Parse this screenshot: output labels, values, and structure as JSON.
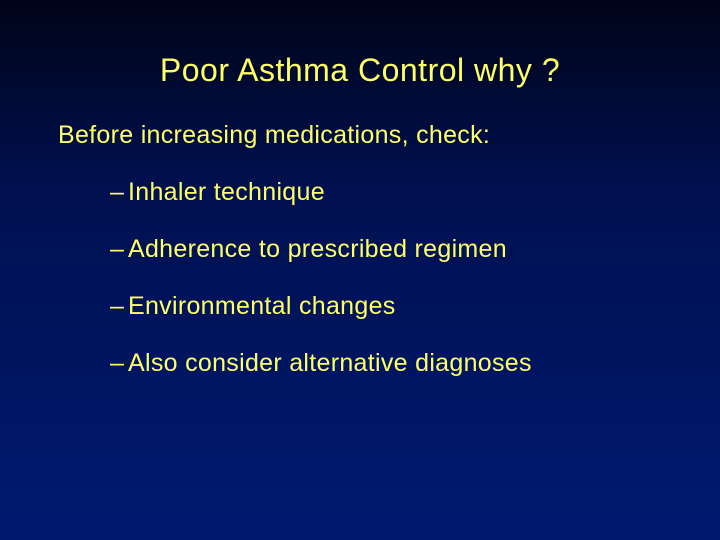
{
  "slide": {
    "background_gradient": [
      "#000418",
      "#001050",
      "#001a70"
    ],
    "title": {
      "text": "Poor Asthma Control  why ?",
      "color": "#ffff66",
      "fontsize": 32
    },
    "subtitle": {
      "text": "Before increasing medications, check:",
      "color": "#ffff66",
      "fontsize": 25
    },
    "bullets": {
      "color": "#ffff66",
      "fontsize": 25,
      "marker": "–",
      "items": [
        "Inhaler technique",
        "Adherence to prescribed regimen",
        "Environmental changes",
        "Also consider alternative diagnoses"
      ]
    }
  }
}
